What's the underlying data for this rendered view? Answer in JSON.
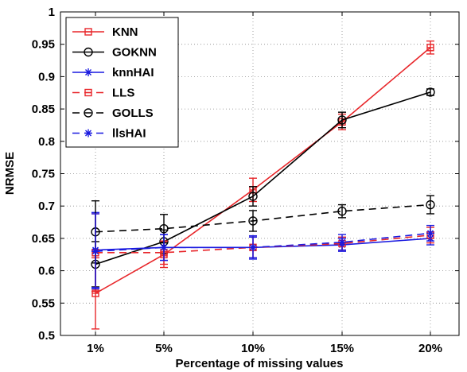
{
  "chart_data": {
    "type": "line",
    "title": "",
    "xlabel": "Percentage of missing values",
    "ylabel": "NRMSE",
    "categories": [
      "1%",
      "5%",
      "10%",
      "15%",
      "20%"
    ],
    "ylim": [
      0.5,
      1.0
    ],
    "yticks": [
      0.5,
      0.55,
      0.6,
      0.65,
      0.7,
      0.75,
      0.8,
      0.85,
      0.9,
      0.95,
      1.0
    ],
    "ytick_labels": [
      "0.5",
      "0.55",
      "0.6",
      "0.65",
      "0.7",
      "0.75",
      "0.8",
      "0.85",
      "0.9",
      "0.95",
      "1"
    ],
    "grid": true,
    "legend_position": "top-left",
    "series": [
      {
        "name": "KNN",
        "color": "#e8262a",
        "dash": "solid",
        "marker": "square",
        "values": [
          0.565,
          0.625,
          0.725,
          0.83,
          0.945
        ],
        "errors": [
          0.055,
          0.02,
          0.018,
          0.012,
          0.01
        ]
      },
      {
        "name": "GOKNN",
        "color": "#000000",
        "dash": "solid",
        "marker": "circle",
        "values": [
          0.61,
          0.645,
          0.715,
          0.833,
          0.876
        ],
        "errors": [
          0.035,
          0.018,
          0.015,
          0.012,
          0.005
        ]
      },
      {
        "name": "knnHAI",
        "color": "#1a1ae0",
        "dash": "solid",
        "marker": "star",
        "values": [
          0.632,
          0.636,
          0.636,
          0.64,
          0.65
        ],
        "errors": [
          0.058,
          0.02,
          0.018,
          0.01,
          0.01
        ]
      },
      {
        "name": "LLS",
        "color": "#e8262a",
        "dash": "dashed",
        "marker": "square",
        "values": [
          0.628,
          0.628,
          0.636,
          0.642,
          0.655
        ],
        "errors": [
          0.06,
          0.018,
          0.016,
          0.01,
          0.012
        ]
      },
      {
        "name": "GOLLS",
        "color": "#000000",
        "dash": "dashed",
        "marker": "circle",
        "values": [
          0.66,
          0.665,
          0.677,
          0.692,
          0.702
        ],
        "errors": [
          0.048,
          0.022,
          0.016,
          0.01,
          0.014
        ]
      },
      {
        "name": "llsHAI",
        "color": "#1a1ae0",
        "dash": "dashed",
        "marker": "star",
        "values": [
          0.63,
          0.636,
          0.636,
          0.644,
          0.658
        ],
        "errors": [
          0.058,
          0.02,
          0.016,
          0.012,
          0.012
        ]
      }
    ]
  }
}
